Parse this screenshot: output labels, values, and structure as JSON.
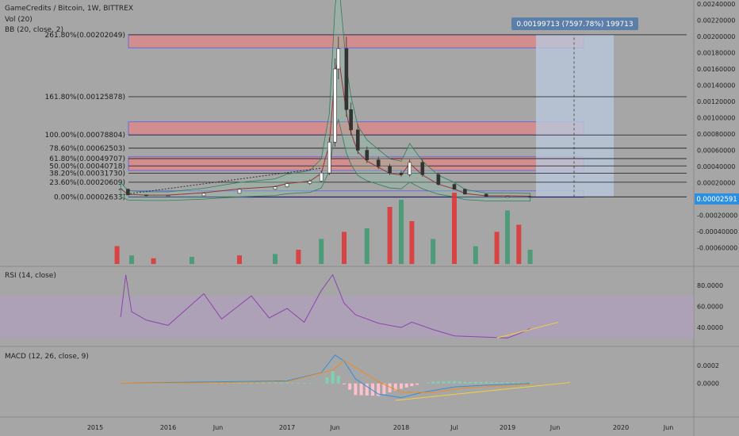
{
  "header": {
    "symbol": "GameCredits / Bitcoin, 1W, BITTREX",
    "vol": "Vol (20)",
    "bb": "BB (20, close, 2)"
  },
  "measure_label": "0.00199713 (7597.78%) 199713",
  "price_tag": "0.00002591",
  "colors": {
    "background": "#a6a6a6",
    "up": "#3d9970",
    "down": "#e03131",
    "fib_zone": "#d98a8a",
    "measure_zone": "#b9c8dc",
    "rsi": "#8e44ad",
    "rsi_band": "#b29cc4",
    "macd": "#2e8fdf",
    "signal": "#f28a1c",
    "trendline": "#f4d03f"
  },
  "panes": {
    "rsi_title": "RSI (14, close)",
    "macd_title": "MACD (12, 26, close, 9)"
  },
  "chart_data": [
    {
      "type": "candlestick",
      "title": "GameCredits / Bitcoin, 1W, BITTREX",
      "x_ticks": [
        "2015",
        "2016",
        "Jun",
        "2017",
        "Jun",
        "2018",
        "Jul",
        "2019",
        "Jun",
        "2020",
        "Jun"
      ],
      "y_ticks": [
        "0.00240000",
        "0.00220000",
        "0.00200000",
        "0.00180000",
        "0.00160000",
        "0.00140000",
        "0.00120000",
        "0.00100000",
        "0.00080000",
        "0.00060000",
        "0.00040000",
        "0.00020000",
        "0.00000000",
        "-0.00020000",
        "-0.00040000",
        "-0.00060000"
      ],
      "ylim": [
        -0.0007,
        0.0025
      ],
      "fib_levels": [
        {
          "label": "261.80%(0.00202049)",
          "value": 0.00202049
        },
        {
          "label": "161.80%(0.00125878)",
          "value": 0.00125878
        },
        {
          "label": "100.00%(0.00078804)",
          "value": 0.00078804
        },
        {
          "label": "78.60%(0.00062503)",
          "value": 0.00062503
        },
        {
          "label": "61.80%(0.00049707)",
          "value": 0.00049707
        },
        {
          "label": "50.00%(0.00040718)",
          "value": 0.00040718
        },
        {
          "label": "38.20%(0.00031730)",
          "value": 0.0003173
        },
        {
          "label": "23.60%(0.00020609)",
          "value": 0.00020609
        },
        {
          "label": "0.00%(0.00002633)",
          "value": 2.633e-05
        }
      ],
      "price_series": [
        [
          2015.35,
          0.00012
        ],
        [
          2015.45,
          5e-05
        ],
        [
          2015.7,
          4e-05
        ],
        [
          2016.0,
          4e-05
        ],
        [
          2016.3,
          7e-05
        ],
        [
          2016.6,
          0.00012
        ],
        [
          2016.9,
          0.00015
        ],
        [
          2017.0,
          0.00019
        ],
        [
          2017.2,
          0.00022
        ],
        [
          2017.3,
          0.00032
        ],
        [
          2017.37,
          0.0007
        ],
        [
          2017.42,
          0.0016
        ],
        [
          2017.45,
          0.00185
        ],
        [
          2017.52,
          0.0011
        ],
        [
          2017.56,
          0.00085
        ],
        [
          2017.62,
          0.0006
        ],
        [
          2017.7,
          0.00048
        ],
        [
          2017.8,
          0.0004
        ],
        [
          2017.9,
          0.00032
        ],
        [
          2018.0,
          0.0003
        ],
        [
          2018.08,
          0.00045
        ],
        [
          2018.2,
          0.0003
        ],
        [
          2018.35,
          0.00018
        ],
        [
          2018.5,
          0.00012
        ],
        [
          2018.6,
          6e-05
        ],
        [
          2018.8,
          3e-05
        ],
        [
          2019.0,
          3e-05
        ],
        [
          2019.2,
          2.6e-05
        ]
      ],
      "volume": [
        [
          2015.3,
          0.25
        ],
        [
          2015.5,
          0.12
        ],
        [
          2015.8,
          0.08
        ],
        [
          2016.2,
          0.1
        ],
        [
          2016.6,
          0.12
        ],
        [
          2016.9,
          0.14
        ],
        [
          2017.1,
          0.2
        ],
        [
          2017.3,
          0.35
        ],
        [
          2017.5,
          0.45
        ],
        [
          2017.7,
          0.5
        ],
        [
          2017.9,
          0.8
        ],
        [
          2018.0,
          0.9
        ],
        [
          2018.1,
          0.6
        ],
        [
          2018.3,
          0.35
        ],
        [
          2018.5,
          1.0
        ],
        [
          2018.7,
          0.25
        ],
        [
          2018.9,
          0.45
        ],
        [
          2019.0,
          0.75
        ],
        [
          2019.1,
          0.55
        ],
        [
          2019.2,
          0.2
        ]
      ]
    },
    {
      "type": "line",
      "title": "RSI (14, close)",
      "y_ticks": [
        "80.0000",
        "60.0000",
        "40.0000"
      ],
      "ylim": [
        25,
        95
      ],
      "series": [
        {
          "values": [
            [
              2015.35,
              50
            ],
            [
              2015.42,
              90
            ],
            [
              2015.5,
              55
            ],
            [
              2015.7,
              47
            ],
            [
              2016.0,
              42
            ],
            [
              2016.3,
              72
            ],
            [
              2016.45,
              48
            ],
            [
              2016.7,
              70
            ],
            [
              2016.85,
              49
            ],
            [
              2017.0,
              58
            ],
            [
              2017.15,
              45
            ],
            [
              2017.3,
              75
            ],
            [
              2017.4,
              90
            ],
            [
              2017.5,
              63
            ],
            [
              2017.6,
              52
            ],
            [
              2017.8,
              44
            ],
            [
              2018.0,
              40
            ],
            [
              2018.1,
              45
            ],
            [
              2018.3,
              38
            ],
            [
              2018.5,
              32
            ],
            [
              2018.75,
              31
            ],
            [
              2019.0,
              30
            ],
            [
              2019.1,
              34
            ],
            [
              2019.2,
              39
            ]
          ]
        }
      ]
    },
    {
      "type": "line",
      "title": "MACD (12, 26, close, 9)",
      "y_ticks": [
        "0.0002",
        "0.0000"
      ],
      "ylim": [
        -0.00035,
        0.00038
      ],
      "series": [
        {
          "values": [
            [
              2015.35,
              0.0
            ],
            [
              2016.0,
              1e-05
            ],
            [
              2016.5,
              2e-05
            ],
            [
              2017.0,
              3e-05
            ],
            [
              2017.3,
              0.00012
            ],
            [
              2017.42,
              0.00032
            ],
            [
              2017.5,
              0.00025
            ],
            [
              2017.6,
              5e-05
            ],
            [
              2017.8,
              -0.00012
            ],
            [
              2018.0,
              -0.00016
            ],
            [
              2018.2,
              -0.0001
            ],
            [
              2018.5,
              -4e-05
            ],
            [
              2018.8,
              -2e-05
            ],
            [
              2019.2,
              0.0
            ]
          ]
        },
        {
          "values": [
            [
              2015.35,
              0.0
            ],
            [
              2016.5,
              1e-05
            ],
            [
              2017.0,
              2e-05
            ],
            [
              2017.4,
              0.00015
            ],
            [
              2017.5,
              0.00026
            ],
            [
              2017.6,
              0.00018
            ],
            [
              2017.8,
              2e-05
            ],
            [
              2018.0,
              -0.0001
            ],
            [
              2018.3,
              -0.0001
            ],
            [
              2018.6,
              -5e-05
            ],
            [
              2019.2,
              -1e-05
            ]
          ]
        }
      ]
    }
  ]
}
